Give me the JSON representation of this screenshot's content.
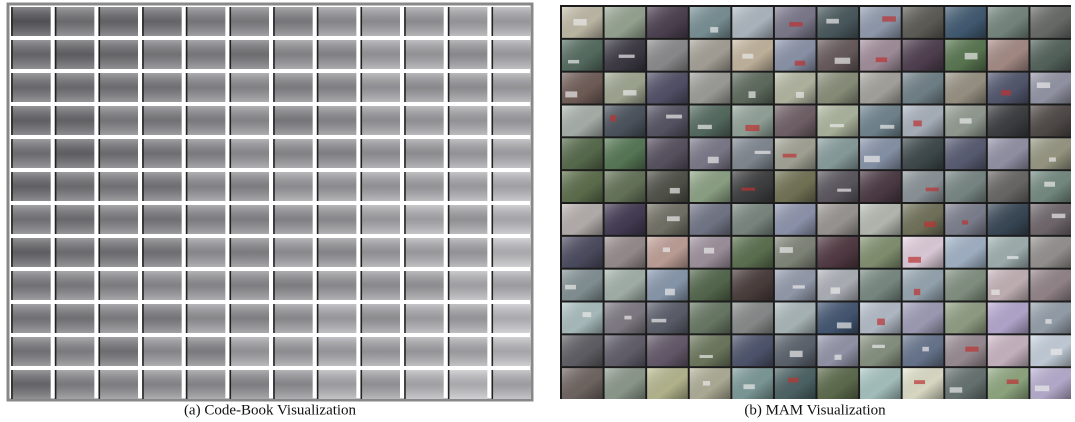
{
  "figure": {
    "panels": [
      {
        "caption": "(a) Code-Book Visualization"
      },
      {
        "caption": "(b) MAM Visualization"
      }
    ]
  }
}
